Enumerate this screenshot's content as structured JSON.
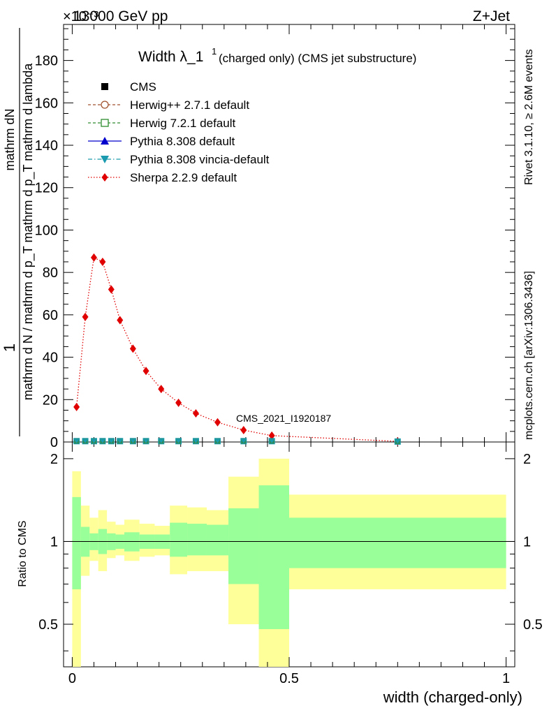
{
  "header": {
    "left": "13000 GeV pp",
    "right": "Z+Jet",
    "exponent": "×10⁻³"
  },
  "side": {
    "rivet": "Rivet 3.1.10, ≥ 2.6M events",
    "mcplots": "mcplots.cern.ch [arXiv:1306.3436]"
  },
  "watermark": "CMS_2021_I1920187",
  "chart_data": [
    {
      "type": "line",
      "title": "Width λ_1¹ (charged only) (CMS jet substructure)",
      "title_main": "Width λ_1",
      "title_sup": "1",
      "title_rest": "(charged only) (CMS jet substructure)",
      "ylabel_numerator": "1",
      "ylabel_den_top": "mathrm dN",
      "ylabel_den_rest": "mathrm d N / mathrm d p_T mathrm d p_T mathrm d lambda",
      "xlim": [
        -0.02,
        1.02
      ],
      "ylim": [
        0,
        197
      ],
      "yticks": [
        0,
        20,
        40,
        60,
        80,
        100,
        120,
        140,
        160,
        180
      ],
      "legend_position": "top-left",
      "legend": [
        {
          "label": "CMS",
          "color": "#000000",
          "marker": "square",
          "line": "none"
        },
        {
          "label": "Herwig++ 2.7.1 default",
          "color": "#a0522d",
          "marker": "circle-open",
          "line": "dashed"
        },
        {
          "label": "Herwig 7.2.1 default",
          "color": "#2e8b2e",
          "marker": "square-open",
          "line": "dashed"
        },
        {
          "label": "Pythia 8.308 default",
          "color": "#0000cc",
          "marker": "triangle-up",
          "line": "solid"
        },
        {
          "label": "Pythia 8.308 vincia-default",
          "color": "#1a9aae",
          "marker": "triangle-down",
          "line": "dashdot"
        },
        {
          "label": "Sherpa 2.2.9 default",
          "color": "#e00000",
          "marker": "diamond",
          "line": "dotted"
        }
      ],
      "series": [
        {
          "name": "Sherpa 2.2.9 default",
          "x": [
            0.01,
            0.03,
            0.05,
            0.07,
            0.09,
            0.11,
            0.14,
            0.17,
            0.205,
            0.245,
            0.285,
            0.335,
            0.395,
            0.46,
            0.75
          ],
          "values": [
            16.5,
            59,
            87,
            85,
            72,
            57.5,
            44,
            33.5,
            25,
            18.5,
            13.5,
            9.3,
            5.6,
            3.0,
            0.3
          ]
        },
        {
          "name": "CMS",
          "x": [
            0.01,
            0.03,
            0.05,
            0.07,
            0.09,
            0.11,
            0.14,
            0.17,
            0.205,
            0.245,
            0.285,
            0.335,
            0.395,
            0.46,
            0.75
          ],
          "values": [
            0.4,
            0.4,
            0.4,
            0.4,
            0.4,
            0.4,
            0.4,
            0.4,
            0.4,
            0.4,
            0.4,
            0.4,
            0.4,
            0.4,
            0.2
          ]
        }
      ]
    },
    {
      "type": "area",
      "ylabel": "Ratio to CMS",
      "xlabel": "width (charged-only)",
      "xlim": [
        -0.02,
        1.02
      ],
      "ylim": [
        0.35,
        2.3
      ],
      "yticks": [
        0.5,
        1,
        2
      ],
      "xticks": [
        0,
        0.5,
        1
      ],
      "reference": 1,
      "bins": [
        {
          "lo": 0.0,
          "hi": 0.02,
          "y_lo": 0.35,
          "y_hi": 1.8,
          "g_lo": 0.67,
          "g_hi": 1.45
        },
        {
          "lo": 0.02,
          "hi": 0.04,
          "y_lo": 0.75,
          "y_hi": 1.35,
          "g_lo": 0.88,
          "g_hi": 1.13
        },
        {
          "lo": 0.04,
          "hi": 0.06,
          "y_lo": 0.85,
          "y_hi": 1.22,
          "g_lo": 0.93,
          "g_hi": 1.07
        },
        {
          "lo": 0.06,
          "hi": 0.08,
          "y_lo": 0.78,
          "y_hi": 1.3,
          "g_lo": 0.9,
          "g_hi": 1.11
        },
        {
          "lo": 0.08,
          "hi": 0.1,
          "y_lo": 0.87,
          "y_hi": 1.18,
          "g_lo": 0.93,
          "g_hi": 1.07
        },
        {
          "lo": 0.1,
          "hi": 0.12,
          "y_lo": 0.89,
          "y_hi": 1.15,
          "g_lo": 0.94,
          "g_hi": 1.06
        },
        {
          "lo": 0.12,
          "hi": 0.155,
          "y_lo": 0.85,
          "y_hi": 1.2,
          "g_lo": 0.92,
          "g_hi": 1.08
        },
        {
          "lo": 0.155,
          "hi": 0.19,
          "y_lo": 0.88,
          "y_hi": 1.16,
          "g_lo": 0.94,
          "g_hi": 1.06
        },
        {
          "lo": 0.19,
          "hi": 0.225,
          "y_lo": 0.89,
          "y_hi": 1.14,
          "g_lo": 0.94,
          "g_hi": 1.06
        },
        {
          "lo": 0.225,
          "hi": 0.265,
          "y_lo": 0.76,
          "y_hi": 1.35,
          "g_lo": 0.88,
          "g_hi": 1.17
        },
        {
          "lo": 0.265,
          "hi": 0.31,
          "y_lo": 0.78,
          "y_hi": 1.33,
          "g_lo": 0.89,
          "g_hi": 1.16
        },
        {
          "lo": 0.31,
          "hi": 0.36,
          "y_lo": 0.78,
          "y_hi": 1.3,
          "g_lo": 0.89,
          "g_hi": 1.15
        },
        {
          "lo": 0.36,
          "hi": 0.43,
          "y_lo": 0.5,
          "y_hi": 1.72,
          "g_lo": 0.7,
          "g_hi": 1.32
        },
        {
          "lo": 0.43,
          "hi": 0.5,
          "y_lo": 0.35,
          "y_hi": 2.0,
          "g_lo": 0.48,
          "g_hi": 1.6
        },
        {
          "lo": 0.5,
          "hi": 1.0,
          "y_lo": 0.67,
          "y_hi": 1.48,
          "g_lo": 0.8,
          "g_hi": 1.22
        }
      ]
    }
  ]
}
